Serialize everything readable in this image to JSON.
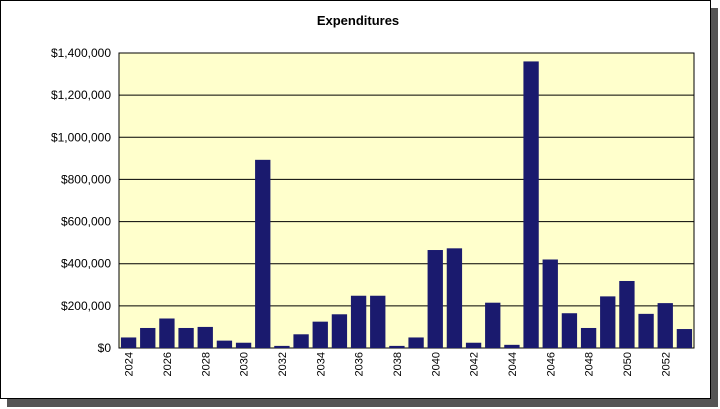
{
  "chart_data": {
    "type": "bar",
    "title": "Expenditures",
    "xlabel": "",
    "ylabel": "",
    "ylim": [
      0,
      1400000
    ],
    "y_ticks": [
      "$0",
      "$200,000",
      "$400,000",
      "$600,000",
      "$800,000",
      "$1,000,000",
      "$1,200,000",
      "$1,400,000"
    ],
    "x_tick_labels": [
      "2024",
      "2026",
      "2028",
      "2030",
      "2032",
      "2034",
      "2036",
      "2038",
      "2040",
      "2042",
      "2044",
      "2046",
      "2048",
      "2050",
      "2052"
    ],
    "categories": [
      "2024",
      "2025",
      "2026",
      "2027",
      "2028",
      "2029",
      "2030",
      "2031",
      "2032",
      "2033",
      "2034",
      "2035",
      "2036",
      "2037",
      "2038",
      "2039",
      "2040",
      "2041",
      "2042",
      "2043",
      "2044",
      "2045",
      "2046",
      "2047",
      "2048",
      "2049",
      "2050",
      "2051",
      "2052",
      "2053"
    ],
    "values": [
      50000,
      95000,
      140000,
      95000,
      100000,
      35000,
      25000,
      893000,
      10000,
      65000,
      125000,
      160000,
      248000,
      248000,
      10000,
      50000,
      465000,
      473000,
      25000,
      215000,
      15000,
      1360000,
      420000,
      165000,
      95000,
      245000,
      318000,
      162000,
      213000,
      90000
    ],
    "grid": "horizontal",
    "legend": "none",
    "colors": {
      "plot_background": "#ffffcc",
      "bar": "#1a1a6e",
      "gridline": "#000000"
    }
  }
}
